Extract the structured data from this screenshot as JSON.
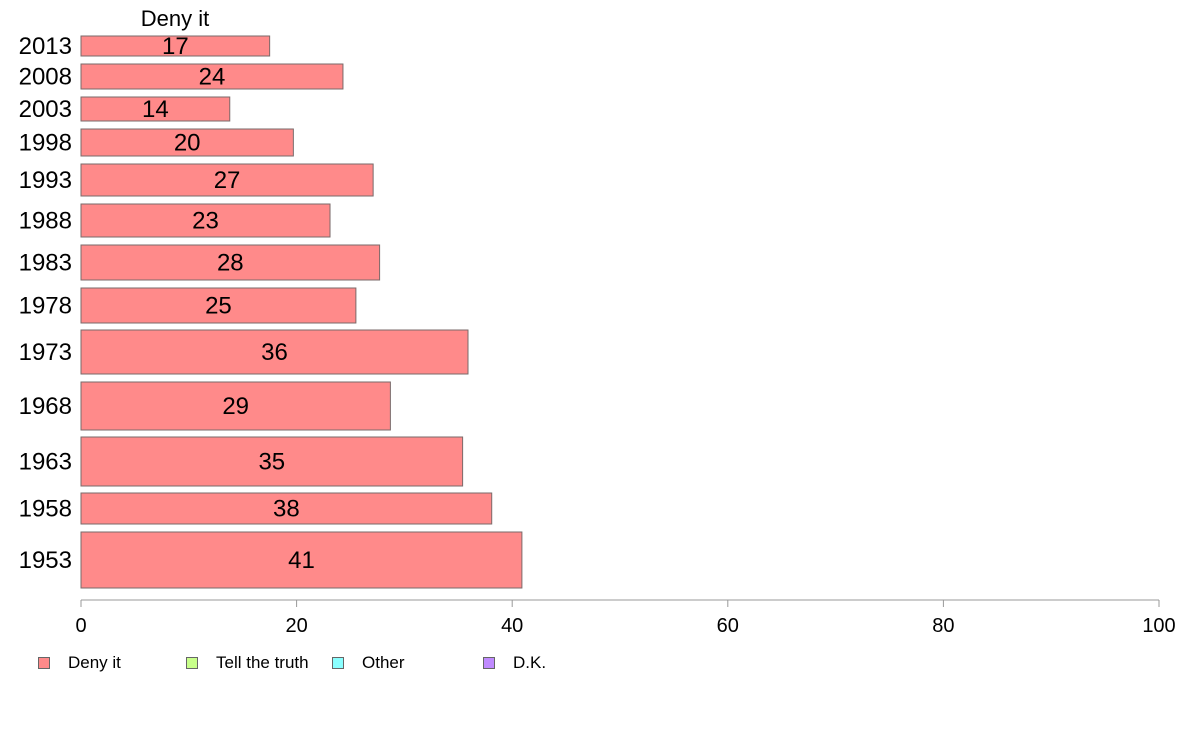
{
  "chart_data": {
    "type": "bar",
    "orientation": "horizontal",
    "series_title": "Deny it",
    "categories": [
      "2013",
      "2008",
      "2003",
      "1998",
      "1993",
      "1988",
      "1983",
      "1978",
      "1973",
      "1968",
      "1963",
      "1958",
      "1953"
    ],
    "values": [
      17.5,
      24.3,
      13.8,
      19.7,
      27.1,
      23.1,
      27.7,
      25.5,
      35.9,
      28.7,
      35.4,
      38.1,
      40.9
    ],
    "data_labels": [
      "17",
      "24",
      "14",
      "20",
      "27",
      "23",
      "28",
      "25",
      "36",
      "29",
      "35",
      "38",
      "41"
    ],
    "xlim": [
      0,
      100
    ],
    "x_ticks": [
      "0",
      "20",
      "40",
      "60",
      "80",
      "100"
    ],
    "legend": [
      {
        "name": "Deny it",
        "color": "#ff8a8a"
      },
      {
        "name": "Tell the truth",
        "color": "#c8ff8a"
      },
      {
        "name": "Other",
        "color": "#8affff"
      },
      {
        "name": "D.K.",
        "color": "#c08aff"
      }
    ],
    "legend_position": "bottom-left",
    "grid": false,
    "bar_color": "#ff8a8a"
  }
}
